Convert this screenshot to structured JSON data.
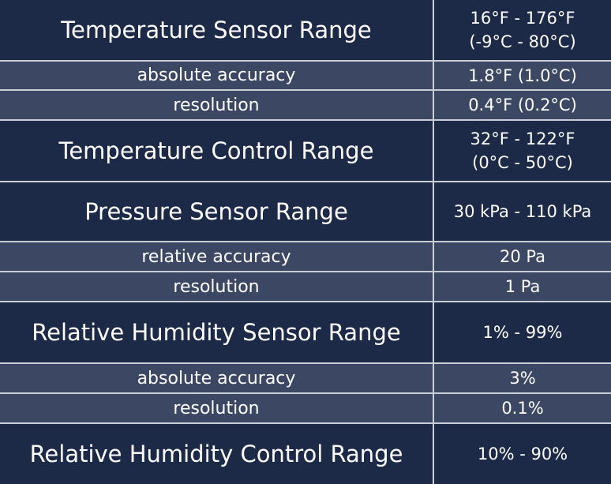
{
  "table": {
    "rows": [
      {
        "label": "Temperature Sensor Range",
        "value": [
          "16°F - 176°F",
          "(-9°C - 80°C)"
        ]
      },
      {
        "label": "absolute accuracy",
        "value": [
          "1.8°F (1.0°C)"
        ]
      },
      {
        "label": "resolution",
        "value": [
          "0.4°F (0.2°C)"
        ]
      },
      {
        "label": "Temperature Control Range",
        "value": [
          "32°F - 122°F",
          "(0°C - 50°C)"
        ]
      },
      {
        "label": "Pressure Sensor Range",
        "value": [
          "30 kPa - 110 kPa"
        ]
      },
      {
        "label": "relative accuracy",
        "value": [
          "20 Pa"
        ]
      },
      {
        "label": "resolution",
        "value": [
          "1 Pa"
        ]
      },
      {
        "label": "Relative Humidity Sensor Range",
        "value": [
          "1% - 99%"
        ]
      },
      {
        "label": "absolute accuracy",
        "value": [
          "3%"
        ]
      },
      {
        "label": "resolution",
        "value": [
          "0.1%"
        ]
      },
      {
        "label": "Relative Humidity Control Range",
        "value": [
          "10% - 90%"
        ]
      }
    ]
  }
}
